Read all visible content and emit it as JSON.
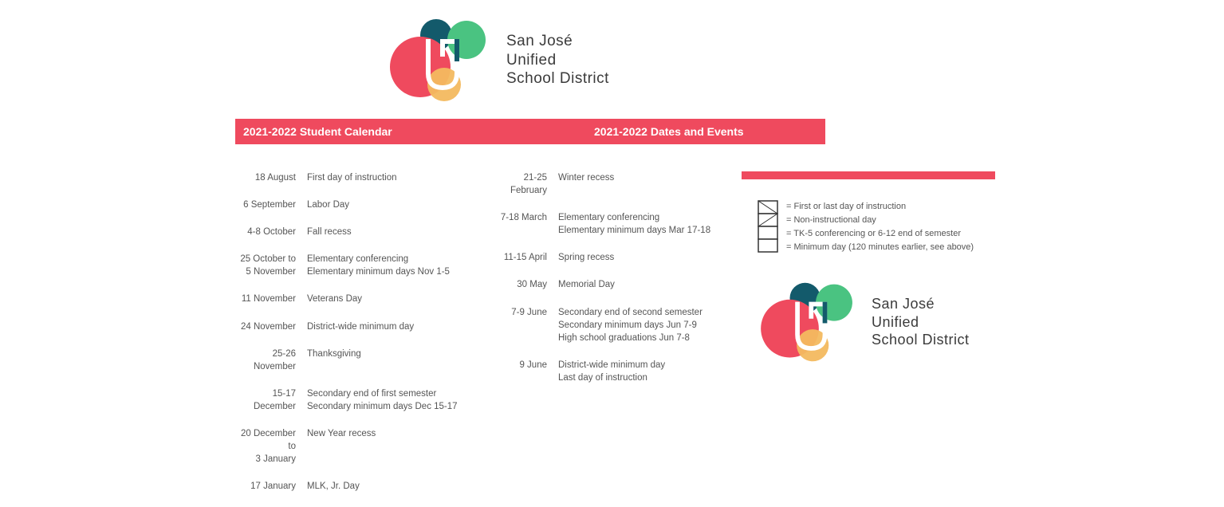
{
  "org": {
    "name_line1": "San José",
    "name_line2": "Unified",
    "name_line3": "School District"
  },
  "header": {
    "left": "2021-2022 Student Calendar",
    "right": "2021-2022 Dates and Events",
    "bar_color": "#ef4a5e",
    "text_color": "#ffffff"
  },
  "logo_colors": {
    "dark_teal": "#135a6b",
    "green": "#4ac381",
    "red": "#ef4a5e",
    "orange": "#f3b95f",
    "shield_stroke": "#ffffff"
  },
  "events_col1": [
    {
      "date": "18 August",
      "desc": [
        "First day of instruction"
      ]
    },
    {
      "date": "6 September",
      "desc": [
        "Labor Day"
      ]
    },
    {
      "date": "4-8 October",
      "desc": [
        "Fall recess"
      ]
    },
    {
      "date": "25 October to\n5 November",
      "desc": [
        "Elementary conferencing",
        "Elementary minimum days Nov 1-5"
      ]
    },
    {
      "date": "11 November",
      "desc": [
        "Veterans Day"
      ]
    },
    {
      "date": "24 November",
      "desc": [
        "District-wide minimum day"
      ]
    },
    {
      "date": "25-26 November",
      "desc": [
        "Thanksgiving"
      ]
    },
    {
      "date": "15-17 December",
      "desc": [
        "Secondary end of first semester",
        "Secondary minimum days Dec 15-17"
      ]
    },
    {
      "date": "20 December to\n3 January",
      "desc": [
        "New Year recess"
      ]
    },
    {
      "date": "17 January",
      "desc": [
        "MLK, Jr. Day"
      ]
    }
  ],
  "events_col2": [
    {
      "date": "21-25 February",
      "desc": [
        "Winter recess"
      ]
    },
    {
      "date": "7-18 March",
      "desc": [
        "Elementary conferencing",
        "Elementary minimum days Mar 17-18"
      ]
    },
    {
      "date": "11-15 April",
      "desc": [
        "Spring recess"
      ]
    },
    {
      "date": "30 May",
      "desc": [
        "Memorial Day"
      ]
    },
    {
      "date": "7-9 June",
      "desc": [
        "Secondary end of second semester",
        "Secondary minimum days Jun 7-9",
        "High school graduations Jun 7-8"
      ]
    },
    {
      "date": "9 June",
      "desc": [
        "District-wide minimum day",
        "Last day of instruction"
      ]
    }
  ],
  "legend": [
    "= First or last day of instruction",
    "= Non-instructional day",
    "= TK-5 conferencing or 6-12 end of semester",
    "= Minimum day (120 minutes earlier, see above)"
  ],
  "typography": {
    "body_fontsize": 11.5,
    "header_fontsize": 14,
    "logo_fontsize": 19,
    "text_color": "#555555",
    "logo_text_color": "#3b3b3b"
  }
}
